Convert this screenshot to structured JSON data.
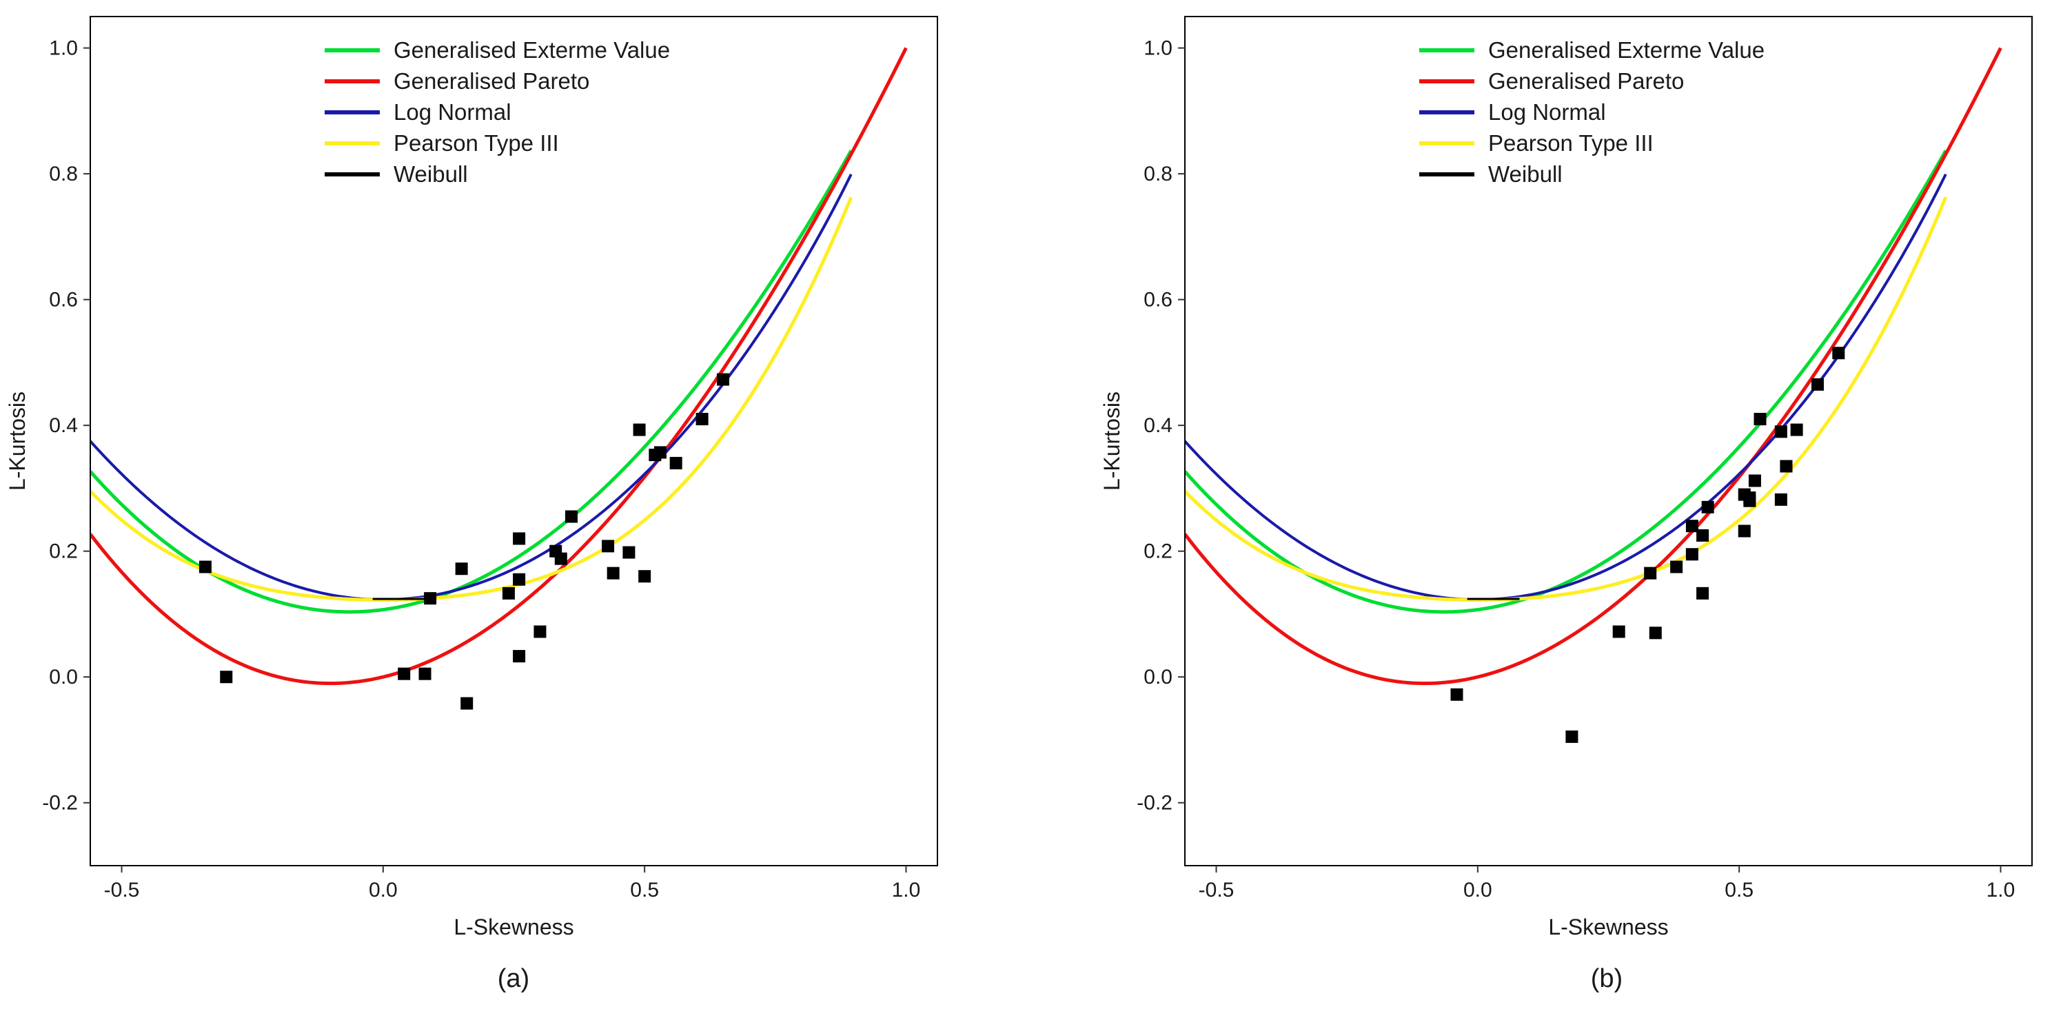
{
  "colors": {
    "gev": "#00dd33",
    "gpa": "#ee1111",
    "ln3": "#1a1aaa",
    "pe3": "#ffee22",
    "wei": "#000000",
    "points": "#000000"
  },
  "chart_data": [
    {
      "type": "scatter",
      "caption": "(a)",
      "xlabel": "L-Skewness",
      "ylabel": "L-Kurtosis",
      "xlim": [
        -0.56,
        1.06
      ],
      "ylim": [
        -0.3,
        1.05
      ],
      "x_ticks": [
        {
          "v": -0.5,
          "label": "-0.5"
        },
        {
          "v": 0.0,
          "label": "0.0"
        },
        {
          "v": 0.5,
          "label": "0.5"
        },
        {
          "v": 1.0,
          "label": "1.0"
        }
      ],
      "y_ticks": [
        {
          "v": -0.2,
          "label": "-0.2"
        },
        {
          "v": 0.0,
          "label": "0.0"
        },
        {
          "v": 0.2,
          "label": "0.2"
        },
        {
          "v": 0.4,
          "label": "0.4"
        },
        {
          "v": 0.6,
          "label": "0.6"
        },
        {
          "v": 0.8,
          "label": "0.8"
        },
        {
          "v": 1.0,
          "label": "1.0"
        }
      ],
      "legend": {
        "placement": "top-center",
        "entries": [
          {
            "key": "gev",
            "label": "Generalised Exterme Value"
          },
          {
            "key": "gpa",
            "label": "Generalised Pareto"
          },
          {
            "key": "ln3",
            "label": "Log Normal"
          },
          {
            "key": "pe3",
            "label": "Pearson Type III"
          },
          {
            "key": "wei",
            "label": "Weibull"
          }
        ]
      },
      "points": [
        [
          -0.34,
          0.175
        ],
        [
          -0.3,
          0.0
        ],
        [
          0.04,
          0.005
        ],
        [
          0.08,
          0.005
        ],
        [
          0.09,
          0.125
        ],
        [
          0.15,
          0.172
        ],
        [
          0.16,
          -0.042
        ],
        [
          0.24,
          0.133
        ],
        [
          0.26,
          0.155
        ],
        [
          0.26,
          0.22
        ],
        [
          0.26,
          0.033
        ],
        [
          0.3,
          0.072
        ],
        [
          0.33,
          0.2
        ],
        [
          0.34,
          0.188
        ],
        [
          0.36,
          0.255
        ],
        [
          0.43,
          0.208
        ],
        [
          0.44,
          0.165
        ],
        [
          0.47,
          0.198
        ],
        [
          0.49,
          0.393
        ],
        [
          0.5,
          0.16
        ],
        [
          0.52,
          0.353
        ],
        [
          0.53,
          0.357
        ],
        [
          0.56,
          0.34
        ],
        [
          0.61,
          0.41
        ],
        [
          0.65,
          0.473
        ]
      ]
    },
    {
      "type": "scatter",
      "caption": "(b)",
      "xlabel": "L-Skewness",
      "ylabel": "L-Kurtosis",
      "xlim": [
        -0.56,
        1.06
      ],
      "ylim": [
        -0.3,
        1.05
      ],
      "x_ticks": [
        {
          "v": -0.5,
          "label": "-0.5"
        },
        {
          "v": 0.0,
          "label": "0.0"
        },
        {
          "v": 0.5,
          "label": "0.5"
        },
        {
          "v": 1.0,
          "label": "1.0"
        }
      ],
      "y_ticks": [
        {
          "v": -0.2,
          "label": "-0.2"
        },
        {
          "v": 0.0,
          "label": "0.0"
        },
        {
          "v": 0.2,
          "label": "0.2"
        },
        {
          "v": 0.4,
          "label": "0.4"
        },
        {
          "v": 0.6,
          "label": "0.6"
        },
        {
          "v": 0.8,
          "label": "0.8"
        },
        {
          "v": 1.0,
          "label": "1.0"
        }
      ],
      "legend": {
        "placement": "top-center",
        "entries": [
          {
            "key": "gev",
            "label": "Generalised Exterme Value"
          },
          {
            "key": "gpa",
            "label": "Generalised Pareto"
          },
          {
            "key": "ln3",
            "label": "Log Normal"
          },
          {
            "key": "pe3",
            "label": "Pearson Type III"
          },
          {
            "key": "wei",
            "label": "Weibull"
          }
        ]
      },
      "points": [
        [
          -0.04,
          -0.028
        ],
        [
          0.18,
          -0.095
        ],
        [
          0.27,
          0.072
        ],
        [
          0.34,
          0.07
        ],
        [
          0.33,
          0.165
        ],
        [
          0.38,
          0.175
        ],
        [
          0.41,
          0.195
        ],
        [
          0.41,
          0.24
        ],
        [
          0.43,
          0.225
        ],
        [
          0.43,
          0.133
        ],
        [
          0.44,
          0.27
        ],
        [
          0.51,
          0.29
        ],
        [
          0.51,
          0.232
        ],
        [
          0.52,
          0.28
        ],
        [
          0.52,
          0.285
        ],
        [
          0.53,
          0.312
        ],
        [
          0.54,
          0.41
        ],
        [
          0.58,
          0.39
        ],
        [
          0.58,
          0.282
        ],
        [
          0.59,
          0.335
        ],
        [
          0.59,
          0.335
        ],
        [
          0.61,
          0.393
        ],
        [
          0.65,
          0.465
        ],
        [
          0.69,
          0.515
        ]
      ]
    }
  ]
}
